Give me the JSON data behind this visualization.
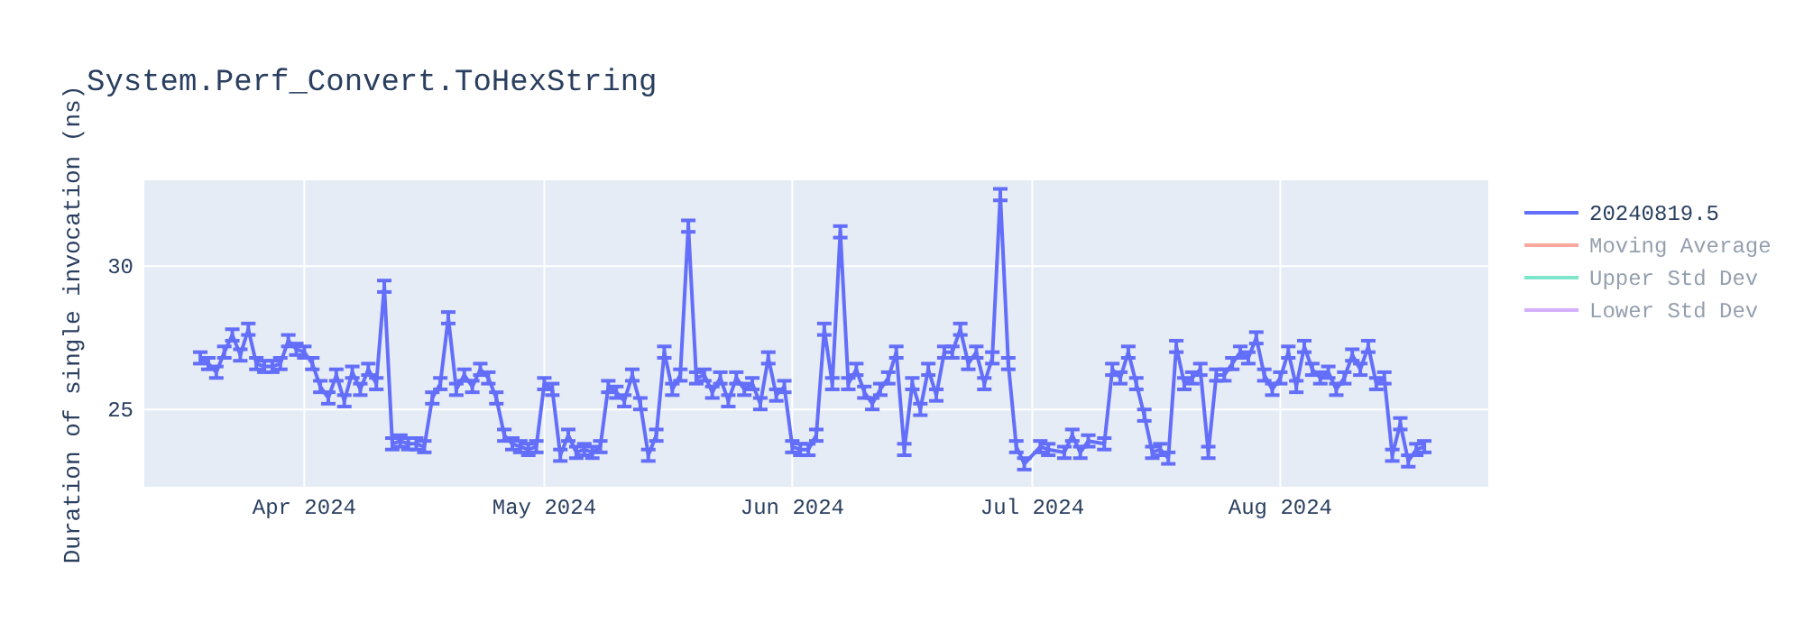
{
  "chart_data": {
    "type": "line",
    "title": "System.Perf_Convert.ToHexString",
    "ylabel": "Duration of single invocation (ns)",
    "xlim": [
      "2024-03-12",
      "2024-08-27"
    ],
    "xticks": [
      {
        "value": "2024-04-01",
        "label": "Apr 2024"
      },
      {
        "value": "2024-05-01",
        "label": "May 2024"
      },
      {
        "value": "2024-06-01",
        "label": "Jun 2024"
      },
      {
        "value": "2024-07-01",
        "label": "Jul 2024"
      },
      {
        "value": "2024-08-01",
        "label": "Aug 2024"
      }
    ],
    "ylim": [
      22.3,
      33.0
    ],
    "yticks": [
      25,
      30
    ],
    "grid": true,
    "legend": "top right",
    "series": [
      {
        "name": "20240819.5",
        "color": "#636efa",
        "x": [
          "2024-03-19",
          "2024-03-20",
          "2024-03-21",
          "2024-03-22",
          "2024-03-23",
          "2024-03-24",
          "2024-03-25",
          "2024-03-26",
          "2024-03-27",
          "2024-03-28",
          "2024-03-29",
          "2024-03-30",
          "2024-03-31",
          "2024-04-01",
          "2024-04-02",
          "2024-04-03",
          "2024-04-04",
          "2024-04-05",
          "2024-04-06",
          "2024-04-07",
          "2024-04-08",
          "2024-04-09",
          "2024-04-10",
          "2024-04-11",
          "2024-04-12",
          "2024-04-13",
          "2024-04-14",
          "2024-04-15",
          "2024-04-16",
          "2024-04-17",
          "2024-04-18",
          "2024-04-19",
          "2024-04-20",
          "2024-04-21",
          "2024-04-22",
          "2024-04-23",
          "2024-04-24",
          "2024-04-25",
          "2024-04-26",
          "2024-04-27",
          "2024-04-28",
          "2024-04-29",
          "2024-04-30",
          "2024-05-01",
          "2024-05-02",
          "2024-05-03",
          "2024-05-04",
          "2024-05-05",
          "2024-05-06",
          "2024-05-07",
          "2024-05-08",
          "2024-05-09",
          "2024-05-10",
          "2024-05-11",
          "2024-05-12",
          "2024-05-13",
          "2024-05-14",
          "2024-05-15",
          "2024-05-16",
          "2024-05-17",
          "2024-05-18",
          "2024-05-19",
          "2024-05-20",
          "2024-05-21",
          "2024-05-22",
          "2024-05-23",
          "2024-05-24",
          "2024-05-25",
          "2024-05-26",
          "2024-05-27",
          "2024-05-28",
          "2024-05-29",
          "2024-05-30",
          "2024-05-31",
          "2024-06-01",
          "2024-06-02",
          "2024-06-03",
          "2024-06-04",
          "2024-06-05",
          "2024-06-06",
          "2024-06-07",
          "2024-06-08",
          "2024-06-09",
          "2024-06-10",
          "2024-06-11",
          "2024-06-12",
          "2024-06-13",
          "2024-06-14",
          "2024-06-15",
          "2024-06-16",
          "2024-06-17",
          "2024-06-18",
          "2024-06-19",
          "2024-06-20",
          "2024-06-21",
          "2024-06-22",
          "2024-06-23",
          "2024-06-24",
          "2024-06-25",
          "2024-06-26",
          "2024-06-27",
          "2024-06-28",
          "2024-06-29",
          "2024-06-30",
          "2024-07-02",
          "2024-07-03",
          "2024-07-05",
          "2024-07-06",
          "2024-07-07",
          "2024-07-08",
          "2024-07-10",
          "2024-07-11",
          "2024-07-12",
          "2024-07-13",
          "2024-07-14",
          "2024-07-15",
          "2024-07-16",
          "2024-07-17",
          "2024-07-18",
          "2024-07-19",
          "2024-07-20",
          "2024-07-21",
          "2024-07-22",
          "2024-07-23",
          "2024-07-24",
          "2024-07-25",
          "2024-07-26",
          "2024-07-27",
          "2024-07-28",
          "2024-07-29",
          "2024-07-30",
          "2024-07-31",
          "2024-08-01",
          "2024-08-02",
          "2024-08-03",
          "2024-08-04",
          "2024-08-05",
          "2024-08-06",
          "2024-08-07",
          "2024-08-08",
          "2024-08-09",
          "2024-08-10",
          "2024-08-11",
          "2024-08-12",
          "2024-08-13",
          "2024-08-14",
          "2024-08-15",
          "2024-08-16",
          "2024-08-17",
          "2024-08-18",
          "2024-08-19"
        ],
        "values": [
          26.8,
          26.6,
          26.3,
          27.0,
          27.6,
          26.9,
          27.8,
          26.6,
          26.5,
          26.5,
          26.6,
          27.4,
          27.1,
          27.0,
          26.6,
          25.8,
          25.4,
          26.2,
          25.3,
          26.3,
          25.7,
          26.4,
          25.9,
          29.3,
          23.8,
          23.9,
          23.8,
          23.8,
          23.7,
          25.4,
          25.9,
          28.2,
          25.7,
          26.2,
          25.8,
          26.4,
          26.1,
          25.4,
          24.1,
          23.8,
          23.7,
          23.6,
          23.7,
          25.9,
          25.7,
          23.4,
          24.1,
          23.5,
          23.6,
          23.5,
          23.7,
          25.8,
          25.6,
          25.3,
          26.2,
          25.2,
          23.4,
          24.1,
          27.0,
          25.7,
          26.2,
          31.4,
          26.1,
          26.2,
          25.6,
          26.1,
          25.3,
          26.1,
          25.7,
          25.9,
          25.2,
          26.8,
          25.5,
          25.8,
          23.7,
          23.6,
          23.6,
          24.1,
          27.8,
          25.9,
          31.2,
          25.9,
          26.4,
          25.6,
          25.2,
          25.7,
          26.1,
          27.0,
          23.6,
          25.9,
          25.0,
          26.4,
          25.5,
          27.0,
          27.0,
          27.8,
          26.6,
          27.0,
          25.9,
          26.8,
          32.5,
          26.6,
          23.7,
          23.1,
          23.7,
          23.6,
          23.5,
          24.1,
          23.5,
          23.9,
          23.8,
          26.4,
          26.1,
          27.0,
          25.9,
          24.8,
          23.5,
          23.6,
          23.3,
          27.2,
          25.9,
          26.1,
          26.4,
          23.5,
          26.2,
          26.2,
          26.6,
          27.0,
          26.8,
          27.5,
          26.2,
          25.7,
          26.1,
          27.0,
          25.8,
          27.2,
          26.4,
          26.1,
          26.3,
          25.7,
          26.1,
          26.9,
          26.4,
          27.2,
          25.9,
          26.1,
          23.4,
          24.5,
          23.2,
          23.6,
          23.7
        ],
        "errors": [
          0.2,
          0.2,
          0.2,
          0.2,
          0.2,
          0.2,
          0.2,
          0.2,
          0.2,
          0.2,
          0.2,
          0.2,
          0.2,
          0.2,
          0.2,
          0.2,
          0.2,
          0.2,
          0.2,
          0.2,
          0.2,
          0.2,
          0.2,
          0.2,
          0.2,
          0.2,
          0.2,
          0.2,
          0.2,
          0.2,
          0.2,
          0.2,
          0.2,
          0.2,
          0.2,
          0.2,
          0.2,
          0.2,
          0.2,
          0.2,
          0.2,
          0.2,
          0.2,
          0.2,
          0.2,
          0.2,
          0.2,
          0.2,
          0.2,
          0.2,
          0.2,
          0.2,
          0.2,
          0.2,
          0.2,
          0.2,
          0.2,
          0.2,
          0.2,
          0.2,
          0.2,
          0.2,
          0.2,
          0.2,
          0.2,
          0.2,
          0.2,
          0.2,
          0.2,
          0.2,
          0.2,
          0.2,
          0.2,
          0.2,
          0.2,
          0.2,
          0.2,
          0.2,
          0.2,
          0.2,
          0.2,
          0.2,
          0.2,
          0.2,
          0.2,
          0.2,
          0.2,
          0.2,
          0.2,
          0.2,
          0.2,
          0.2,
          0.2,
          0.2,
          0.2,
          0.2,
          0.2,
          0.2,
          0.2,
          0.2,
          0.2,
          0.2,
          0.2,
          0.2,
          0.2,
          0.2,
          0.2,
          0.2,
          0.2,
          0.2,
          0.2,
          0.2,
          0.2,
          0.2,
          0.2,
          0.2,
          0.2,
          0.2,
          0.2,
          0.2,
          0.2,
          0.2,
          0.2,
          0.2,
          0.2,
          0.2,
          0.2,
          0.2,
          0.2,
          0.2,
          0.2,
          0.2,
          0.2,
          0.2,
          0.2,
          0.2,
          0.2,
          0.2,
          0.2,
          0.2,
          0.2,
          0.2,
          0.2,
          0.2,
          0.2,
          0.2,
          0.2,
          0.2,
          0.2,
          0.2,
          0.2
        ]
      },
      {
        "name": "Moving Average",
        "color": "#ef553b"
      },
      {
        "name": "Upper Std Dev",
        "color": "#00cc96"
      },
      {
        "name": "Lower Std Dev",
        "color": "#ab63fa"
      }
    ]
  }
}
